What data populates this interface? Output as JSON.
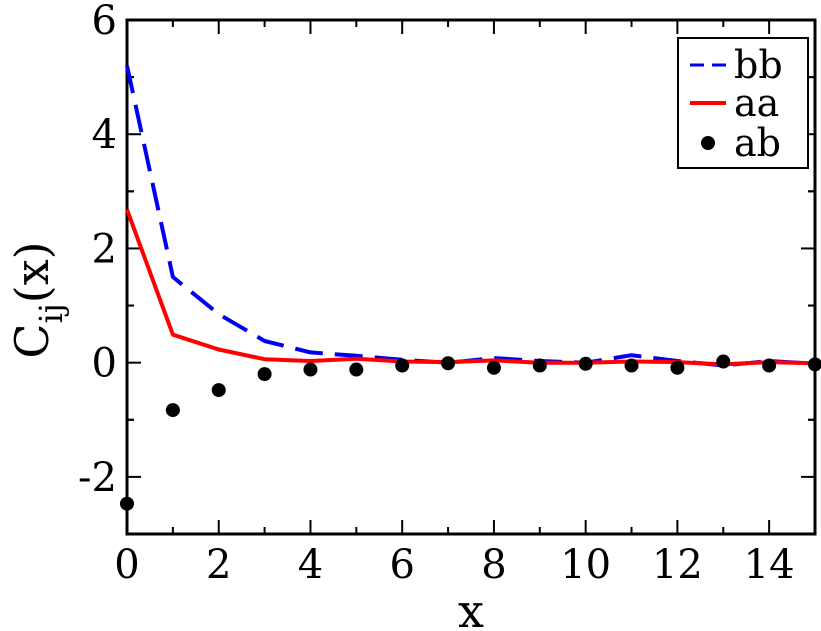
{
  "chart_data": {
    "type": "line",
    "xlabel": "x",
    "ylabel_main": "C",
    "ylabel_sub": "ij",
    "ylabel_tail": "(x)",
    "xlim": [
      0,
      15
    ],
    "ylim": [
      -3,
      6
    ],
    "x_ticks": [
      0,
      2,
      4,
      6,
      8,
      10,
      12,
      14
    ],
    "x_tick_labels": [
      "0",
      "2",
      "4",
      "6",
      "8",
      "10",
      "12",
      "14"
    ],
    "y_ticks": [
      -2,
      0,
      2,
      4,
      6
    ],
    "y_tick_labels": [
      "-2",
      "0",
      "2",
      "4",
      "6"
    ],
    "grid": false,
    "legend_position": "top-right",
    "series": [
      {
        "name": "bb",
        "style": "dashed-line",
        "color": "#0000ee",
        "x": [
          0,
          1,
          2,
          3,
          4,
          5,
          6,
          7,
          8,
          9,
          10,
          11,
          12,
          13,
          14,
          15
        ],
        "y": [
          5.2,
          1.5,
          0.85,
          0.38,
          0.18,
          0.12,
          0.05,
          0.0,
          0.08,
          0.03,
          0.0,
          0.13,
          0.03,
          -0.05,
          0.03,
          -0.02
        ]
      },
      {
        "name": "aa",
        "style": "solid-line",
        "color": "#ff0000",
        "x": [
          0,
          1,
          2,
          3,
          4,
          5,
          6,
          7,
          8,
          9,
          10,
          11,
          12,
          13,
          14,
          15
        ],
        "y": [
          2.68,
          0.49,
          0.23,
          0.06,
          0.03,
          0.07,
          0.02,
          0.01,
          0.04,
          0.0,
          0.0,
          0.02,
          0.01,
          -0.03,
          0.01,
          -0.01
        ]
      },
      {
        "name": "ab",
        "style": "points",
        "color": "#000000",
        "x": [
          0,
          1,
          2,
          3,
          4,
          5,
          6,
          7,
          8,
          9,
          10,
          11,
          12,
          13,
          14,
          15
        ],
        "y": [
          -2.47,
          -0.83,
          -0.48,
          -0.2,
          -0.12,
          -0.12,
          -0.05,
          -0.01,
          -0.09,
          -0.05,
          -0.02,
          -0.05,
          -0.09,
          0.02,
          -0.05,
          -0.03
        ]
      }
    ]
  }
}
